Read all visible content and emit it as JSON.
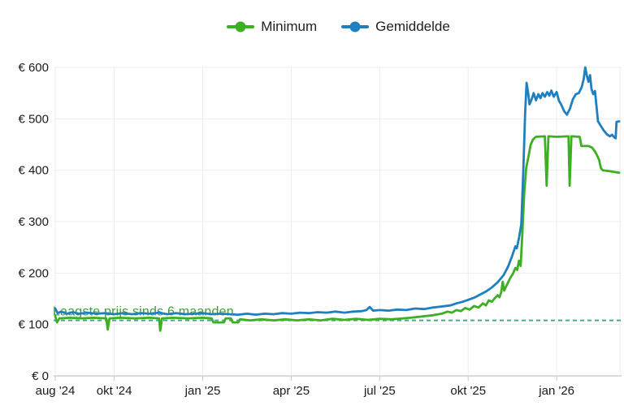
{
  "legend": {
    "items": [
      {
        "label": "Minimum",
        "color": "#3caf23"
      },
      {
        "label": "Gemiddelde",
        "color": "#1e80c0"
      }
    ]
  },
  "annotation": {
    "text": "Laagste prijs sinds 6 maanden",
    "color": "#3aa033"
  },
  "colors": {
    "grid": "#ededed",
    "axis_line": "#dadada",
    "tick": "#c9c9c9",
    "label_text": "#1a1a1a",
    "reference_dashed": "#44aa8c"
  },
  "chart_data": {
    "type": "line",
    "title": "",
    "xlabel": "",
    "ylabel": "",
    "currency_prefix": "€",
    "x_unit": "months since aug 2024",
    "xlim": [
      0,
      19.2
    ],
    "ylim": [
      0,
      600
    ],
    "grid": true,
    "legend_position": "top-center",
    "y_ticks": [
      0,
      100,
      200,
      300,
      400,
      500,
      600
    ],
    "x_ticks": [
      {
        "label": "aug '24",
        "m": 0
      },
      {
        "label": "okt '24",
        "m": 2
      },
      {
        "label": "jan '25",
        "m": 5
      },
      {
        "label": "apr '25",
        "m": 8
      },
      {
        "label": "jul '25",
        "m": 11
      },
      {
        "label": "okt '25",
        "m": 14
      },
      {
        "label": "jan '26",
        "m": 17
      },
      {
        "label": "",
        "m": 19.15
      }
    ],
    "reference_line": {
      "value": 108,
      "style": "dashed",
      "color": "#44aa8c",
      "label": "Laagste prijs sinds 6 maanden"
    },
    "series": [
      {
        "name": "Minimum",
        "color": "#3caf23",
        "points": [
          [
            0,
            116
          ],
          [
            0.06,
            104
          ],
          [
            0.14,
            112
          ],
          [
            0.5,
            113
          ],
          [
            0.9,
            112
          ],
          [
            1.3,
            113
          ],
          [
            1.73,
            112
          ],
          [
            1.78,
            90
          ],
          [
            1.84,
            112
          ],
          [
            2.2,
            113
          ],
          [
            2.7,
            112
          ],
          [
            3.2,
            113
          ],
          [
            3.52,
            112
          ],
          [
            3.56,
            88
          ],
          [
            3.62,
            112
          ],
          [
            4.0,
            113
          ],
          [
            4.5,
            112
          ],
          [
            5.0,
            113
          ],
          [
            5.3,
            112
          ],
          [
            5.36,
            104
          ],
          [
            5.72,
            104
          ],
          [
            5.78,
            112
          ],
          [
            5.95,
            112
          ],
          [
            6.02,
            104
          ],
          [
            6.2,
            104
          ],
          [
            6.27,
            110
          ],
          [
            6.6,
            108
          ],
          [
            7.0,
            110
          ],
          [
            7.4,
            108
          ],
          [
            7.8,
            110
          ],
          [
            8.2,
            108
          ],
          [
            8.6,
            110
          ],
          [
            9.0,
            108
          ],
          [
            9.4,
            111
          ],
          [
            9.8,
            109
          ],
          [
            10.2,
            111
          ],
          [
            10.6,
            109
          ],
          [
            11.0,
            111
          ],
          [
            11.4,
            110
          ],
          [
            11.8,
            112
          ],
          [
            12.2,
            114
          ],
          [
            12.5,
            116
          ],
          [
            12.8,
            118
          ],
          [
            13.1,
            121
          ],
          [
            13.3,
            125
          ],
          [
            13.45,
            123
          ],
          [
            13.6,
            128
          ],
          [
            13.75,
            126
          ],
          [
            13.9,
            132
          ],
          [
            14.05,
            129
          ],
          [
            14.2,
            136
          ],
          [
            14.35,
            133
          ],
          [
            14.5,
            141
          ],
          [
            14.6,
            137
          ],
          [
            14.7,
            147
          ],
          [
            14.8,
            144
          ],
          [
            14.9,
            151
          ],
          [
            15.0,
            157
          ],
          [
            15.06,
            153
          ],
          [
            15.12,
            163
          ],
          [
            15.17,
            183
          ],
          [
            15.22,
            166
          ],
          [
            15.32,
            178
          ],
          [
            15.42,
            190
          ],
          [
            15.52,
            199
          ],
          [
            15.6,
            210
          ],
          [
            15.66,
            206
          ],
          [
            15.72,
            224
          ],
          [
            15.78,
            214
          ],
          [
            15.84,
            280
          ],
          [
            15.9,
            355
          ],
          [
            15.97,
            405
          ],
          [
            16.05,
            428
          ],
          [
            16.12,
            450
          ],
          [
            16.2,
            460
          ],
          [
            16.3,
            465
          ],
          [
            16.6,
            466
          ],
          [
            16.66,
            370
          ],
          [
            16.72,
            466
          ],
          [
            17.0,
            465
          ],
          [
            17.4,
            466
          ],
          [
            17.44,
            370
          ],
          [
            17.5,
            466
          ],
          [
            17.78,
            465
          ],
          [
            17.84,
            447
          ],
          [
            18.08,
            447
          ],
          [
            18.2,
            444
          ],
          [
            18.28,
            438
          ],
          [
            18.36,
            430
          ],
          [
            18.44,
            420
          ],
          [
            18.5,
            404
          ],
          [
            18.56,
            400
          ],
          [
            18.8,
            398
          ],
          [
            19.12,
            395
          ]
        ]
      },
      {
        "name": "Gemiddelde",
        "color": "#1e80c0",
        "points": [
          [
            0,
            131
          ],
          [
            0.08,
            122
          ],
          [
            0.2,
            125
          ],
          [
            0.4,
            121
          ],
          [
            0.6,
            124
          ],
          [
            0.8,
            121
          ],
          [
            1.1,
            123
          ],
          [
            1.4,
            121
          ],
          [
            1.7,
            122
          ],
          [
            2.0,
            120
          ],
          [
            2.3,
            122
          ],
          [
            2.6,
            120
          ],
          [
            2.9,
            122
          ],
          [
            3.2,
            121
          ],
          [
            3.5,
            123
          ],
          [
            3.8,
            120
          ],
          [
            4.1,
            122
          ],
          [
            4.4,
            120
          ],
          [
            4.7,
            121
          ],
          [
            5.0,
            122
          ],
          [
            5.3,
            120
          ],
          [
            5.6,
            121
          ],
          [
            5.9,
            120
          ],
          [
            6.2,
            119
          ],
          [
            6.5,
            121
          ],
          [
            6.8,
            119
          ],
          [
            7.1,
            121
          ],
          [
            7.4,
            120
          ],
          [
            7.7,
            122
          ],
          [
            8.0,
            121
          ],
          [
            8.3,
            123
          ],
          [
            8.6,
            122
          ],
          [
            8.9,
            124
          ],
          [
            9.2,
            123
          ],
          [
            9.5,
            125
          ],
          [
            9.8,
            123
          ],
          [
            10.1,
            125
          ],
          [
            10.4,
            126
          ],
          [
            10.55,
            128
          ],
          [
            10.66,
            134
          ],
          [
            10.78,
            127
          ],
          [
            11.0,
            128
          ],
          [
            11.3,
            127
          ],
          [
            11.6,
            129
          ],
          [
            11.9,
            128
          ],
          [
            12.2,
            131
          ],
          [
            12.5,
            130
          ],
          [
            12.8,
            133
          ],
          [
            13.1,
            135
          ],
          [
            13.4,
            137
          ],
          [
            13.6,
            141
          ],
          [
            13.8,
            144
          ],
          [
            14.0,
            148
          ],
          [
            14.2,
            152
          ],
          [
            14.4,
            158
          ],
          [
            14.6,
            164
          ],
          [
            14.8,
            172
          ],
          [
            15.0,
            182
          ],
          [
            15.2,
            196
          ],
          [
            15.35,
            212
          ],
          [
            15.5,
            235
          ],
          [
            15.6,
            252
          ],
          [
            15.65,
            248
          ],
          [
            15.72,
            268
          ],
          [
            15.8,
            295
          ],
          [
            15.87,
            400
          ],
          [
            15.93,
            510
          ],
          [
            15.98,
            570
          ],
          [
            16.03,
            552
          ],
          [
            16.08,
            528
          ],
          [
            16.15,
            538
          ],
          [
            16.22,
            550
          ],
          [
            16.3,
            536
          ],
          [
            16.38,
            548
          ],
          [
            16.45,
            540
          ],
          [
            16.52,
            550
          ],
          [
            16.6,
            543
          ],
          [
            16.68,
            552
          ],
          [
            16.75,
            545
          ],
          [
            16.82,
            555
          ],
          [
            16.9,
            543
          ],
          [
            17.0,
            552
          ],
          [
            17.08,
            535
          ],
          [
            17.15,
            528
          ],
          [
            17.25,
            515
          ],
          [
            17.35,
            508
          ],
          [
            17.45,
            520
          ],
          [
            17.55,
            538
          ],
          [
            17.65,
            548
          ],
          [
            17.75,
            550
          ],
          [
            17.85,
            562
          ],
          [
            17.92,
            578
          ],
          [
            17.97,
            600
          ],
          [
            18.03,
            582
          ],
          [
            18.08,
            572
          ],
          [
            18.13,
            585
          ],
          [
            18.18,
            558
          ],
          [
            18.24,
            548
          ],
          [
            18.3,
            554
          ],
          [
            18.35,
            525
          ],
          [
            18.4,
            495
          ],
          [
            18.5,
            486
          ],
          [
            18.6,
            477
          ],
          [
            18.7,
            470
          ],
          [
            18.8,
            466
          ],
          [
            18.88,
            469
          ],
          [
            18.95,
            464
          ],
          [
            19.0,
            462
          ],
          [
            19.03,
            494
          ],
          [
            19.12,
            495
          ]
        ]
      }
    ]
  }
}
